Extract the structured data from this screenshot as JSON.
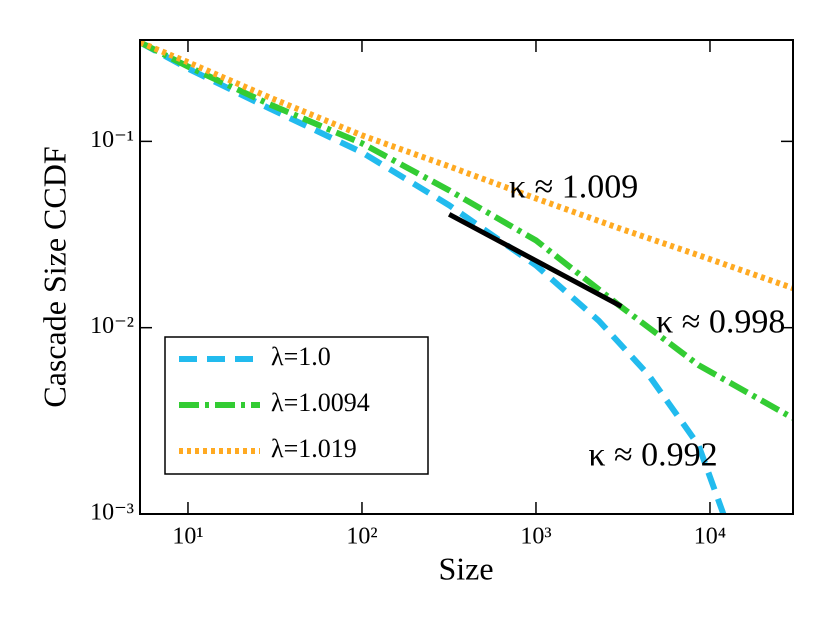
{
  "chart_data": {
    "type": "line",
    "xlabel": "Size",
    "ylabel": "Cascade Size CCDF",
    "xscale": "log",
    "yscale": "log",
    "xlim": [
      5.3,
      30000
    ],
    "ylim": [
      0.001,
      0.35
    ],
    "xticks": [
      {
        "value": 10,
        "label": "10¹"
      },
      {
        "value": 100,
        "label": "10²"
      },
      {
        "value": 1000,
        "label": "10³"
      },
      {
        "value": 10000,
        "label": "10⁴"
      }
    ],
    "yticks": [
      {
        "value": 0.001,
        "label": "10⁻³"
      },
      {
        "value": 0.01,
        "label": "10⁻²"
      },
      {
        "value": 0.1,
        "label": "10⁻¹"
      }
    ],
    "legend": "lower left",
    "series": [
      {
        "name": "λ=1.0",
        "color": "#22bbee",
        "dash": "18 10",
        "x": [
          5.3,
          10,
          29.5,
          100,
          317,
          1000,
          2296,
          4446,
          8590,
          11940
        ],
        "values": [
          0.34,
          0.246,
          0.15,
          0.0873,
          0.0454,
          0.0216,
          0.0109,
          0.00556,
          0.00234,
          0.001
        ]
      },
      {
        "name": "λ=1.0094",
        "color": "#33cc33",
        "dash": "20 6 4 6",
        "x": [
          5.3,
          10,
          29.5,
          100,
          317,
          1000,
          3000,
          8590,
          30000
        ],
        "values": [
          0.34,
          0.252,
          0.158,
          0.0976,
          0.0546,
          0.0294,
          0.0132,
          0.0063,
          0.00327
        ]
      },
      {
        "name": "λ=1.019",
        "color": "#ffaa22",
        "dash": "4 4",
        "x": [
          5.3,
          10,
          29.5,
          100,
          317,
          1000,
          3000,
          8590,
          30000
        ],
        "values": [
          0.34,
          0.266,
          0.172,
          0.1077,
          0.0734,
          0.0494,
          0.0342,
          0.0245,
          0.0163
        ]
      }
    ],
    "reference_line": {
      "color": "#000000",
      "x": [
        317,
        3100
      ],
      "values": [
        0.0406,
        0.013
      ]
    },
    "annotations": [
      {
        "text": "κ ≈ 1.009",
        "x": 700,
        "y": 0.055,
        "color": "#d98a1e"
      },
      {
        "text": "κ ≈ 0.998",
        "x": 4900,
        "y": 0.0104,
        "color": "#3a9a3a"
      },
      {
        "text": "κ ≈ 0.992",
        "x": 2000,
        "y": 0.002,
        "color": "#1ba0c8"
      }
    ]
  }
}
